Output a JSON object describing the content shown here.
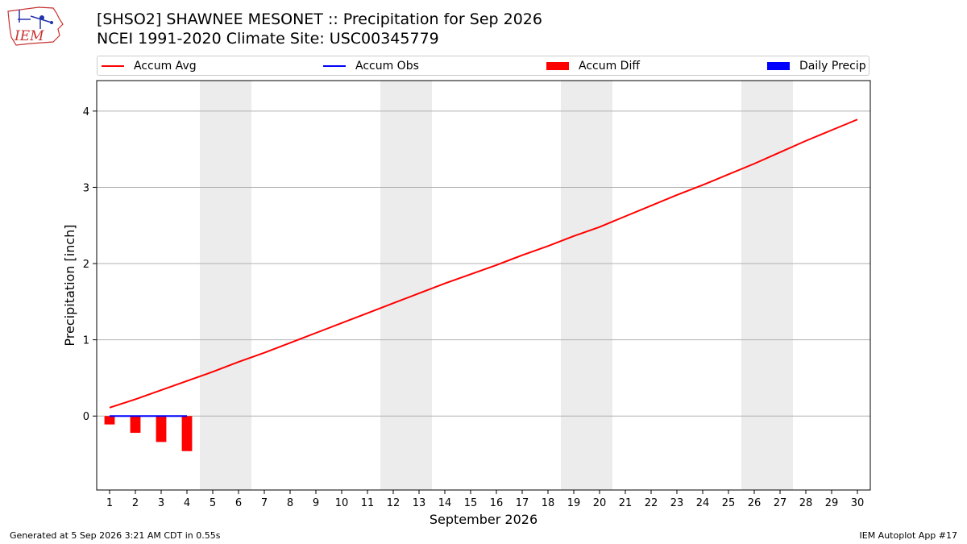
{
  "header": {
    "title_line1": "[SHSO2] SHAWNEE MESONET :: Precipitation for Sep 2026",
    "title_line2": "NCEI 1991-2020 Climate Site: USC00345779",
    "logo_text": "IEM"
  },
  "legend": [
    {
      "label": "Accum Avg",
      "kind": "line",
      "color": "#ff0000"
    },
    {
      "label": "Accum Obs",
      "kind": "line",
      "color": "#0000ff"
    },
    {
      "label": "Accum Diff",
      "kind": "box",
      "color": "#ff0000"
    },
    {
      "label": "Daily Precip",
      "kind": "box",
      "color": "#0000ff"
    }
  ],
  "footer": {
    "generated": "Generated at 5 Sep 2026 3:21 AM CDT in 0.55s",
    "app": "IEM Autoplot App #17"
  },
  "chart_data": {
    "type": "line",
    "xlabel": "September 2026",
    "ylabel": "Precipitation [inch]",
    "x_ticks": [
      "1",
      "2",
      "3",
      "4",
      "5",
      "6",
      "7",
      "8",
      "9",
      "10",
      "11",
      "12",
      "13",
      "14",
      "15",
      "16",
      "17",
      "18",
      "19",
      "20",
      "21",
      "22",
      "23",
      "24",
      "25",
      "26",
      "27",
      "28",
      "29",
      "30"
    ],
    "xlim": [
      0.5,
      30.5
    ],
    "ylim": [
      -0.97,
      4.4
    ],
    "y_ticks": [
      0,
      1,
      2,
      3,
      4
    ],
    "grid": "horizontal",
    "weekend_shading": [
      [
        4.5,
        6.5
      ],
      [
        11.5,
        13.5
      ],
      [
        18.5,
        20.5
      ],
      [
        25.5,
        27.5
      ]
    ],
    "series": [
      {
        "name": "Accum Avg",
        "color": "#ff0000",
        "x": [
          1,
          2,
          3,
          4,
          5,
          6,
          7,
          8,
          9,
          10,
          11,
          12,
          13,
          14,
          15,
          16,
          17,
          18,
          19,
          20,
          21,
          22,
          23,
          24,
          25,
          26,
          27,
          28,
          29,
          30
        ],
        "values": [
          0.11,
          0.22,
          0.34,
          0.46,
          0.58,
          0.71,
          0.83,
          0.96,
          1.09,
          1.22,
          1.35,
          1.48,
          1.61,
          1.74,
          1.86,
          1.98,
          2.11,
          2.23,
          2.36,
          2.48,
          2.62,
          2.76,
          2.9,
          3.03,
          3.17,
          3.31,
          3.46,
          3.61,
          3.75,
          3.89
        ]
      },
      {
        "name": "Accum Obs",
        "color": "#0000ff",
        "x": [
          1,
          2,
          3,
          4
        ],
        "values": [
          0,
          0,
          0,
          0
        ]
      },
      {
        "name": "Accum Diff",
        "color": "#ff0000",
        "kind": "bar",
        "x": [
          1,
          2,
          3,
          4
        ],
        "values": [
          -0.11,
          -0.22,
          -0.34,
          -0.46
        ]
      },
      {
        "name": "Daily Precip",
        "color": "#0000ff",
        "kind": "bar",
        "x": [
          1,
          2,
          3,
          4
        ],
        "values": [
          0,
          0,
          0,
          0
        ]
      }
    ]
  }
}
